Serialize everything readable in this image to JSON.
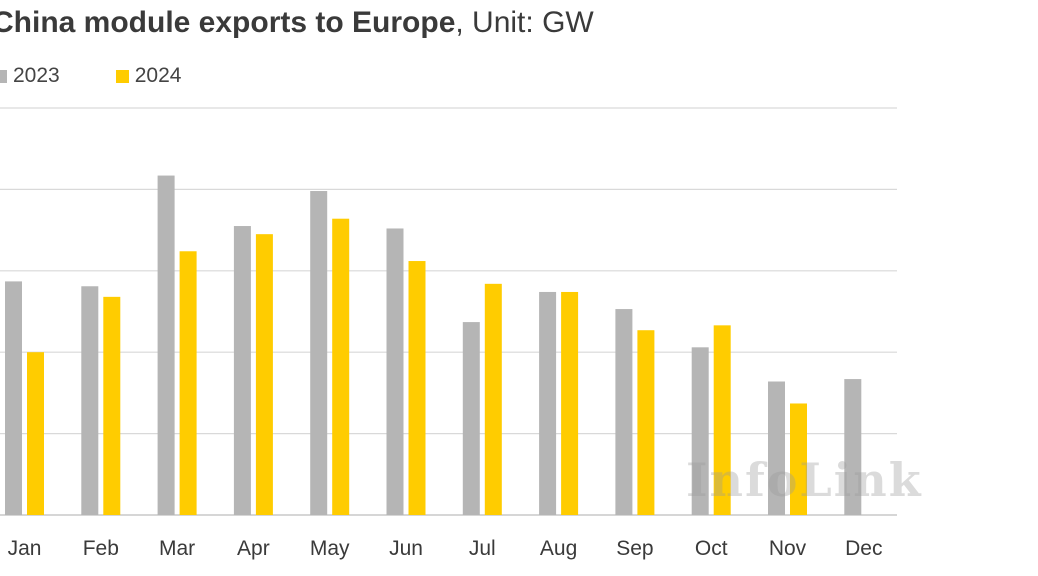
{
  "header": {
    "title_bold": "China module exports to Europe",
    "title_rest": ", Unit: GW"
  },
  "watermark": "InfoLink",
  "chart_data": {
    "type": "bar",
    "title": "China module exports to Europe, Unit: GW",
    "categories": [
      "Jan",
      "Feb",
      "Mar",
      "Apr",
      "May",
      "Jun",
      "Jul",
      "Aug",
      "Sep",
      "Oct",
      "Nov",
      "Dec"
    ],
    "series": [
      {
        "name": "2023",
        "color": "#b5b5b5",
        "values": [
          2.87,
          2.81,
          4.17,
          3.55,
          3.98,
          3.52,
          2.37,
          2.74,
          2.53,
          2.06,
          1.64,
          1.67
        ]
      },
      {
        "name": "2024",
        "color": "#ffcc00",
        "values": [
          2.0,
          2.68,
          3.24,
          3.45,
          3.64,
          3.12,
          2.84,
          2.74,
          2.27,
          2.33,
          1.37,
          null
        ]
      }
    ],
    "ylim": [
      0,
      5
    ],
    "ytick_step": 1,
    "grid": true,
    "legend": "top-left",
    "xlabel": "",
    "ylabel": ""
  }
}
